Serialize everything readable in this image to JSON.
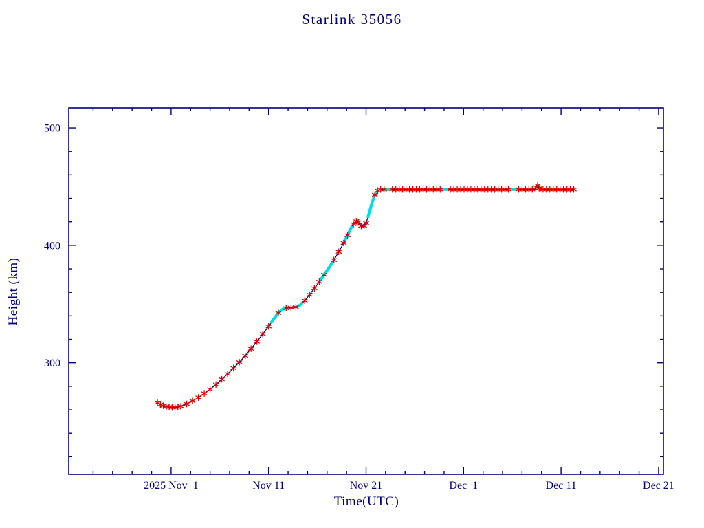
{
  "window": {
    "background": "#ffffff"
  },
  "chart_data": {
    "type": "line",
    "title": "Starlink 35056",
    "xlabel": "Time(UTC)",
    "ylabel": "Height (km)",
    "x_axis": {
      "unit": "days relative to 2025 Nov 1",
      "lim": [
        -10.5,
        50.5
      ],
      "minor_step": 2,
      "ticks": [
        {
          "pos": 0,
          "label": "2025 Nov  1"
        },
        {
          "pos": 10,
          "label": "Nov 11"
        },
        {
          "pos": 20,
          "label": "Nov 21"
        },
        {
          "pos": 30,
          "label": "Dec  1"
        },
        {
          "pos": 40,
          "label": "Dec 11"
        },
        {
          "pos": 50,
          "label": "Dec 21"
        }
      ]
    },
    "y_axis": {
      "lim": [
        205,
        517
      ],
      "minor_step": 20,
      "ticks": [
        {
          "pos": 300,
          "label": "300"
        },
        {
          "pos": 400,
          "label": "400"
        },
        {
          "pos": 500,
          "label": "500"
        }
      ]
    },
    "colors": {
      "axis": "#000080",
      "text": "#000080",
      "line": "#000080",
      "marker": "#e00000",
      "maneuver": "#00dce8",
      "background": "#ffffff"
    },
    "line": [
      [
        -1.4,
        266
      ],
      [
        -1.1,
        264.5
      ],
      [
        -0.8,
        263.5
      ],
      [
        -0.5,
        262.8
      ],
      [
        -0.2,
        262.3
      ],
      [
        0.1,
        262
      ],
      [
        0.4,
        262
      ],
      [
        0.7,
        262.3
      ],
      [
        1.0,
        263
      ],
      [
        1.6,
        265
      ],
      [
        2.2,
        267.5
      ],
      [
        2.8,
        270.5
      ],
      [
        3.4,
        274
      ],
      [
        4.0,
        277.5
      ],
      [
        4.6,
        281.5
      ],
      [
        5.2,
        286
      ],
      [
        5.8,
        290.5
      ],
      [
        6.4,
        295.5
      ],
      [
        7.0,
        300.5
      ],
      [
        7.6,
        306
      ],
      [
        8.2,
        312
      ],
      [
        8.8,
        318
      ],
      [
        9.4,
        324.5
      ],
      [
        10.0,
        331
      ],
      [
        10.5,
        337
      ],
      [
        11.0,
        342.5
      ],
      [
        11.4,
        345.5
      ],
      [
        11.8,
        346.5
      ],
      [
        12.3,
        347
      ],
      [
        12.8,
        347.5
      ],
      [
        13.2,
        349
      ],
      [
        13.7,
        353
      ],
      [
        14.2,
        358
      ],
      [
        14.7,
        363.5
      ],
      [
        15.2,
        369
      ],
      [
        15.7,
        375
      ],
      [
        16.2,
        381
      ],
      [
        16.7,
        387.5
      ],
      [
        17.2,
        394.5
      ],
      [
        17.7,
        402
      ],
      [
        18.1,
        408.5
      ],
      [
        18.4,
        414
      ],
      [
        18.7,
        418
      ],
      [
        19.0,
        420.5
      ],
      [
        19.2,
        419.5
      ],
      [
        19.5,
        416.5
      ],
      [
        19.8,
        416.5
      ],
      [
        20.0,
        419
      ],
      [
        20.3,
        427
      ],
      [
        20.6,
        436
      ],
      [
        20.9,
        443
      ],
      [
        21.2,
        446.5
      ],
      [
        21.5,
        447.5
      ],
      [
        37.3,
        447.5
      ],
      [
        37.45,
        449.5
      ],
      [
        37.6,
        451
      ],
      [
        37.75,
        448.5
      ],
      [
        37.9,
        447.5
      ],
      [
        41.3,
        447.5
      ]
    ],
    "maneuver_segments": [
      [
        10.3,
        11.6
      ],
      [
        12.9,
        13.4
      ],
      [
        15.4,
        16.5
      ],
      [
        17.9,
        18.5
      ],
      [
        20.2,
        21.1
      ],
      [
        21.9,
        22.6
      ],
      [
        27.7,
        28.3
      ],
      [
        34.8,
        35.4
      ]
    ],
    "markers": [
      [
        -1.4,
        266
      ],
      [
        -1.1,
        264.5
      ],
      [
        -0.8,
        263.5
      ],
      [
        -0.5,
        262.8
      ],
      [
        -0.2,
        262.3
      ],
      [
        0.1,
        262
      ],
      [
        0.4,
        262
      ],
      [
        0.7,
        262.3
      ],
      [
        1.0,
        263
      ],
      [
        1.6,
        265
      ],
      [
        2.2,
        267.5
      ],
      [
        2.8,
        270.5
      ],
      [
        3.4,
        274
      ],
      [
        4.0,
        277.5
      ],
      [
        4.6,
        281.5
      ],
      [
        5.2,
        286
      ],
      [
        5.8,
        290.5
      ],
      [
        6.4,
        295.5
      ],
      [
        7.0,
        300.5
      ],
      [
        7.6,
        306
      ],
      [
        8.2,
        312
      ],
      [
        8.8,
        318
      ],
      [
        9.4,
        324.5
      ],
      [
        10.0,
        331
      ],
      [
        11.0,
        342.5
      ],
      [
        11.8,
        346.5
      ],
      [
        12.3,
        347
      ],
      [
        12.8,
        347.5
      ],
      [
        13.7,
        353
      ],
      [
        14.2,
        358
      ],
      [
        14.7,
        363.5
      ],
      [
        15.2,
        369
      ],
      [
        15.7,
        375
      ],
      [
        16.7,
        387.5
      ],
      [
        17.2,
        394.5
      ],
      [
        17.7,
        402
      ],
      [
        18.1,
        408.5
      ],
      [
        18.7,
        418
      ],
      [
        19.0,
        420.5
      ],
      [
        19.2,
        419.5
      ],
      [
        19.5,
        416.5
      ],
      [
        19.8,
        416.5
      ],
      [
        20.0,
        419
      ],
      [
        20.9,
        443
      ],
      [
        21.2,
        446.5
      ],
      [
        21.5,
        447.5
      ],
      [
        21.85,
        447.5
      ],
      [
        22.7,
        447.5
      ],
      [
        23.05,
        447.5
      ],
      [
        23.4,
        447.5
      ],
      [
        23.75,
        447.5
      ],
      [
        24.1,
        447.5
      ],
      [
        24.45,
        447.5
      ],
      [
        24.8,
        447.5
      ],
      [
        25.15,
        447.5
      ],
      [
        25.5,
        447.5
      ],
      [
        25.85,
        447.5
      ],
      [
        26.2,
        447.5
      ],
      [
        26.55,
        447.5
      ],
      [
        26.9,
        447.5
      ],
      [
        27.25,
        447.5
      ],
      [
        27.6,
        447.5
      ],
      [
        28.65,
        447.5
      ],
      [
        29.0,
        447.5
      ],
      [
        29.35,
        447.5
      ],
      [
        29.7,
        447.5
      ],
      [
        30.05,
        447.5
      ],
      [
        30.4,
        447.5
      ],
      [
        30.75,
        447.5
      ],
      [
        31.1,
        447.5
      ],
      [
        31.45,
        447.5
      ],
      [
        31.8,
        447.5
      ],
      [
        32.15,
        447.5
      ],
      [
        32.5,
        447.5
      ],
      [
        32.85,
        447.5
      ],
      [
        33.2,
        447.5
      ],
      [
        33.55,
        447.5
      ],
      [
        33.9,
        447.5
      ],
      [
        34.25,
        447.5
      ],
      [
        34.6,
        447.5
      ],
      [
        35.65,
        447.5
      ],
      [
        36.0,
        447.5
      ],
      [
        36.35,
        447.5
      ],
      [
        36.7,
        447.5
      ],
      [
        37.05,
        447.5
      ],
      [
        37.45,
        449.5
      ],
      [
        37.6,
        451
      ],
      [
        37.75,
        448.5
      ],
      [
        38.15,
        447.5
      ],
      [
        38.5,
        447.5
      ],
      [
        38.85,
        447.5
      ],
      [
        39.2,
        447.5
      ],
      [
        39.55,
        447.5
      ],
      [
        39.9,
        447.5
      ],
      [
        40.25,
        447.5
      ],
      [
        40.6,
        447.5
      ],
      [
        40.95,
        447.5
      ],
      [
        41.3,
        447.5
      ]
    ]
  }
}
